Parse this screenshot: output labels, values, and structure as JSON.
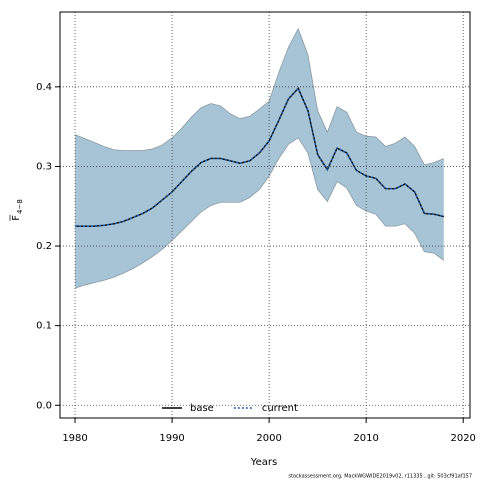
{
  "chart_data": {
    "type": "line",
    "xlabel": "Years",
    "ylabel": {
      "symbol": "F",
      "subscript": "4−8"
    },
    "footer": "stockassessment.org, MackWGWIDE2019v02, r11335 , git: 503cf91af157",
    "x": [
      1980,
      1981,
      1982,
      1983,
      1984,
      1985,
      1986,
      1987,
      1988,
      1989,
      1990,
      1991,
      1992,
      1993,
      1994,
      1995,
      1996,
      1997,
      1998,
      1999,
      2000,
      2001,
      2002,
      2003,
      2004,
      2005,
      2006,
      2007,
      2008,
      2009,
      2010,
      2011,
      2012,
      2013,
      2014,
      2015,
      2016,
      2017,
      2018
    ],
    "series": [
      {
        "name": "base",
        "color": "#000000",
        "dash": false,
        "values": [
          0.225,
          0.225,
          0.225,
          0.226,
          0.228,
          0.231,
          0.236,
          0.241,
          0.248,
          0.258,
          0.268,
          0.281,
          0.294,
          0.305,
          0.31,
          0.31,
          0.307,
          0.304,
          0.307,
          0.317,
          0.332,
          0.358,
          0.385,
          0.398,
          0.37,
          0.315,
          0.296,
          0.323,
          0.317,
          0.295,
          0.288,
          0.285,
          0.272,
          0.272,
          0.278,
          0.268,
          0.241,
          0.24,
          0.237
        ]
      },
      {
        "name": "current",
        "color": "#1f5fa8",
        "dash": true,
        "values": [
          0.225,
          0.225,
          0.225,
          0.226,
          0.228,
          0.231,
          0.236,
          0.241,
          0.248,
          0.258,
          0.268,
          0.281,
          0.294,
          0.305,
          0.31,
          0.31,
          0.307,
          0.304,
          0.307,
          0.317,
          0.332,
          0.358,
          0.385,
          0.398,
          0.37,
          0.315,
          0.296,
          0.323,
          0.317,
          0.295,
          0.288,
          0.285,
          0.272,
          0.272,
          0.278,
          0.268,
          0.241,
          0.24,
          0.237
        ]
      }
    ],
    "band_color": "#a6c4d6",
    "ci_upper": [
      0.34,
      0.335,
      0.33,
      0.325,
      0.321,
      0.32,
      0.32,
      0.32,
      0.322,
      0.327,
      0.336,
      0.348,
      0.362,
      0.374,
      0.379,
      0.376,
      0.366,
      0.36,
      0.363,
      0.372,
      0.382,
      0.418,
      0.45,
      0.473,
      0.44,
      0.37,
      0.343,
      0.375,
      0.368,
      0.343,
      0.338,
      0.337,
      0.325,
      0.329,
      0.337,
      0.325,
      0.302,
      0.305,
      0.31
    ],
    "ci_lower": [
      0.147,
      0.151,
      0.154,
      0.157,
      0.161,
      0.166,
      0.172,
      0.179,
      0.187,
      0.196,
      0.207,
      0.219,
      0.231,
      0.243,
      0.251,
      0.255,
      0.255,
      0.255,
      0.261,
      0.271,
      0.288,
      0.31,
      0.328,
      0.336,
      0.317,
      0.271,
      0.256,
      0.281,
      0.273,
      0.251,
      0.244,
      0.24,
      0.225,
      0.225,
      0.228,
      0.216,
      0.193,
      0.191,
      0.182
    ],
    "xlim": [
      1978.45,
      2020.7
    ],
    "ylim": [
      -0.016,
      0.494
    ],
    "xticks": [
      1980,
      1990,
      2000,
      2010,
      2020
    ],
    "yticks": [
      {
        "value": 0,
        "label": "0.0"
      },
      0.1,
      0.2,
      0.3,
      0.4
    ],
    "grid": true,
    "legend": "bottom"
  }
}
